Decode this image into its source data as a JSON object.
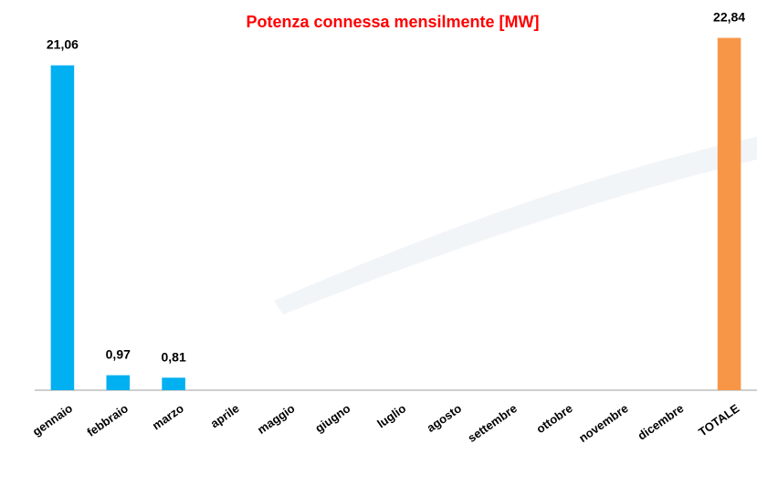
{
  "chart_data": {
    "type": "bar",
    "title": "Potenza connessa mensilmente [MW]",
    "categories": [
      "gennaio",
      "febbraio",
      "marzo",
      "aprile",
      "maggio",
      "giugno",
      "luglio",
      "agosto",
      "settembre",
      "ottobre",
      "novembre",
      "dicembre",
      "TOTALE"
    ],
    "values": [
      21.06,
      0.97,
      0.81,
      null,
      null,
      null,
      null,
      null,
      null,
      null,
      null,
      null,
      22.84
    ],
    "value_labels": [
      "21,06",
      "0,97",
      "0,81",
      null,
      null,
      null,
      null,
      null,
      null,
      null,
      null,
      null,
      "22,84"
    ],
    "colors": [
      "#00b0f0",
      "#00b0f0",
      "#00b0f0",
      "#00b0f0",
      "#00b0f0",
      "#00b0f0",
      "#00b0f0",
      "#00b0f0",
      "#00b0f0",
      "#00b0f0",
      "#00b0f0",
      "#00b0f0",
      "#f79646"
    ],
    "title_color": "#ff0000",
    "ylim": [
      0,
      25
    ]
  }
}
